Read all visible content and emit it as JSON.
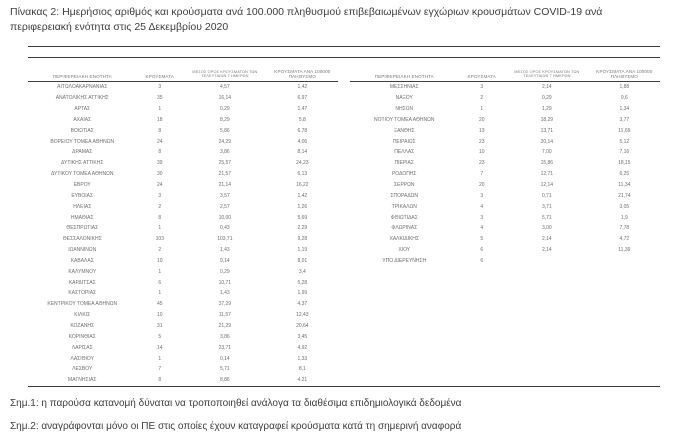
{
  "title": "Πίνακας 2:  Ημερήσιος αριθμός και κρούσματα ανά 100.000 πληθυσμού επιβεβαιωμένων εγχώριων κρουσμάτων COVID-19 ανά περιφερειακή ενότητα στις 25 Δεκεμβρίου 2020",
  "table": {
    "headers": {
      "region": "ΠΕΡΙΦΕΡΕΙΑΚΗ ΕΝΟΤΗΤΑ",
      "cases": "ΚΡΟΥΣΜΑΤΑ",
      "avg7_line1": "ΜΕΣΟΣ ΟΡΟΣ ΚΡΟΥΣΜΑΤΩΝ ΤΩΝ",
      "avg7_line2": "ΤΕΛΕΥΤΑΙΩΝ 7 ΗΜΕΡΩΝ",
      "per100k": "ΚΡΟΥΣΜΑΤΑ ΑΝΑ 100000 ΠΛΗΘΥΣΜΟ"
    },
    "left_rows": [
      {
        "region": "ΑΙΤΩΛΟΑΚΑΡΝΑΝΙΑΣ",
        "cases": "3",
        "avg7": "4,57",
        "per100k": "1,42"
      },
      {
        "region": "ΑΝΑΤΟΛΙΚΗΣ ΑΤΤΙΚΗΣ",
        "cases": "35",
        "avg7": "16,14",
        "per100k": "6,97"
      },
      {
        "region": "ΑΡΤΑΣ",
        "cases": "1",
        "avg7": "0,29",
        "per100k": "1,47"
      },
      {
        "region": "ΑΧΑΪΑΣ",
        "cases": "18",
        "avg7": "8,29",
        "per100k": "5,8"
      },
      {
        "region": "ΒΟΙΩΤΙΑΣ",
        "cases": "8",
        "avg7": "5,86",
        "per100k": "6,78"
      },
      {
        "region": "ΒΟΡΕΙΟΥ ΤΟΜΕΑ ΑΘΗΝΩΝ",
        "cases": "24",
        "avg7": "24,29",
        "per100k": "4,06"
      },
      {
        "region": "ΔΡΑΜΑΣ",
        "cases": "8",
        "avg7": "3,86",
        "per100k": "8,14"
      },
      {
        "region": "ΔΥΤΙΚΗΣ ΑΤΤΙΚΗΣ",
        "cases": "39",
        "avg7": "25,57",
        "per100k": "24,23"
      },
      {
        "region": "ΔΥΤΙΚΟΥ ΤΟΜΕΑ ΑΘΗΝΩΝ",
        "cases": "30",
        "avg7": "21,57",
        "per100k": "6,13"
      },
      {
        "region": "ΕΒΡΟΥ",
        "cases": "24",
        "avg7": "21,14",
        "per100k": "16,22"
      },
      {
        "region": "ΕΥΒΟΙΑΣ",
        "cases": "3",
        "avg7": "3,57",
        "per100k": "1,42"
      },
      {
        "region": "ΗΛΕΙΑΣ",
        "cases": "2",
        "avg7": "2,57",
        "per100k": "1,26"
      },
      {
        "region": "ΗΜΑΘΙΑΣ",
        "cases": "8",
        "avg7": "10,00",
        "per100k": "5,69"
      },
      {
        "region": "ΘΕΣΠΡΩΤΙΑΣ",
        "cases": "1",
        "avg7": "0,43",
        "per100k": "2,29"
      },
      {
        "region": "ΘΕΣΣΑΛΟΝΙΚΗΣ",
        "cases": "103",
        "avg7": "103,71",
        "per100k": "9,28"
      },
      {
        "region": "ΙΩΑΝΝΙΝΩΝ",
        "cases": "2",
        "avg7": "1,43",
        "per100k": "1,19"
      },
      {
        "region": "ΚΑΒΑΛΑΣ",
        "cases": "10",
        "avg7": "9,14",
        "per100k": "8,01"
      },
      {
        "region": "ΚΑΛΥΜΝΟΥ",
        "cases": "1",
        "avg7": "0,29",
        "per100k": "3,4"
      },
      {
        "region": "ΚΑΡΔΙΤΣΑΣ",
        "cases": "6",
        "avg7": "10,71",
        "per100k": "5,28"
      },
      {
        "region": "ΚΑΣΤΟΡΙΑΣ",
        "cases": "1",
        "avg7": "1,43",
        "per100k": "1,99"
      },
      {
        "region": "ΚΕΝΤΡΙΚΟΥ ΤΟΜΕΑ ΑΘΗΝΩΝ",
        "cases": "45",
        "avg7": "37,29",
        "per100k": "4,37"
      },
      {
        "region": "ΚΙΛΚΙΣ",
        "cases": "10",
        "avg7": "11,57",
        "per100k": "12,43"
      },
      {
        "region": "ΚΟΖΑΝΗΣ",
        "cases": "31",
        "avg7": "21,29",
        "per100k": "20,64"
      },
      {
        "region": "ΚΟΡΙΝΘΙΑΣ",
        "cases": "5",
        "avg7": "3,86",
        "per100k": "3,45"
      },
      {
        "region": "ΛΑΡΙΣΑΣ",
        "cases": "14",
        "avg7": "23,71",
        "per100k": "4,92"
      },
      {
        "region": "ΛΑΣΙΘΙΟΥ",
        "cases": "1",
        "avg7": "0,14",
        "per100k": "1,33"
      },
      {
        "region": "ΛΕΣΒΟΥ",
        "cases": "7",
        "avg7": "5,71",
        "per100k": "8,1"
      },
      {
        "region": "ΜΑΓΝΗΣΙΑΣ",
        "cases": "8",
        "avg7": "8,86",
        "per100k": "4,21"
      }
    ],
    "right_rows": [
      {
        "region": "ΜΕΣΣΗΝΙΑΣ",
        "cases": "3",
        "avg7": "2,14",
        "per100k": "1,88"
      },
      {
        "region": "ΝΑΞΟΥ",
        "cases": "2",
        "avg7": "0,29",
        "per100k": "9,6"
      },
      {
        "region": "ΝΗΣΩΝ",
        "cases": "1",
        "avg7": "1,29",
        "per100k": "1,34"
      },
      {
        "region": "ΝΟΤΙΟΥ ΤΟΜΕΑ ΑΘΗΝΩΝ",
        "cases": "20",
        "avg7": "18,29",
        "per100k": "3,77"
      },
      {
        "region": "ΞΑΝΘΗΣ",
        "cases": "13",
        "avg7": "13,71",
        "per100k": "11,69"
      },
      {
        "region": "ΠΕΙΡΑΙΩΣ",
        "cases": "23",
        "avg7": "20,14",
        "per100k": "5,12"
      },
      {
        "region": "ΠΕΛΛΑΣ",
        "cases": "10",
        "avg7": "7,00",
        "per100k": "7,16"
      },
      {
        "region": "ΠΙΕΡΙΑΣ",
        "cases": "23",
        "avg7": "15,86",
        "per100k": "18,15"
      },
      {
        "region": "ΡΟΔΟΠΗΣ",
        "cases": "7",
        "avg7": "12,71",
        "per100k": "6,25"
      },
      {
        "region": "ΣΕΡΡΩΝ",
        "cases": "20",
        "avg7": "12,14",
        "per100k": "11,34"
      },
      {
        "region": "ΣΠΟΡΑΔΩΝ",
        "cases": "3",
        "avg7": "0,71",
        "per100k": "21,74"
      },
      {
        "region": "ΤΡΙΚΑΛΩΝ",
        "cases": "4",
        "avg7": "3,71",
        "per100k": "3,05"
      },
      {
        "region": "ΦΘΙΩΤΙΔΑΣ",
        "cases": "3",
        "avg7": "5,71",
        "per100k": "1,9"
      },
      {
        "region": "ΦΛΩΡΙΝΑΣ",
        "cases": "4",
        "avg7": "3,00",
        "per100k": "7,78"
      },
      {
        "region": "ΧΑΛΚΙΔΙΚΗΣ",
        "cases": "5",
        "avg7": "2,14",
        "per100k": "4,72"
      },
      {
        "region": "ΧΙΟΥ",
        "cases": "6",
        "avg7": "2,14",
        "per100k": "11,39"
      },
      {
        "region": "ΥΠΟ ΔΙΕΡΕΥΝΗΣΗ",
        "cases": "6",
        "avg7": "",
        "per100k": ""
      }
    ]
  },
  "notes": {
    "note1": "Σημ.1: η παρούσα κατανομή δύναται να τροποποιηθεί ανάλογα τα διαθέσιμα επιδημιολογικά δεδομένα",
    "note2": "Σημ.2: αναγράφονται μόνο οι ΠΕ στις οποίες έχουν καταγραφεί κρούσματα κατά τη σημερινή αναφορά"
  }
}
